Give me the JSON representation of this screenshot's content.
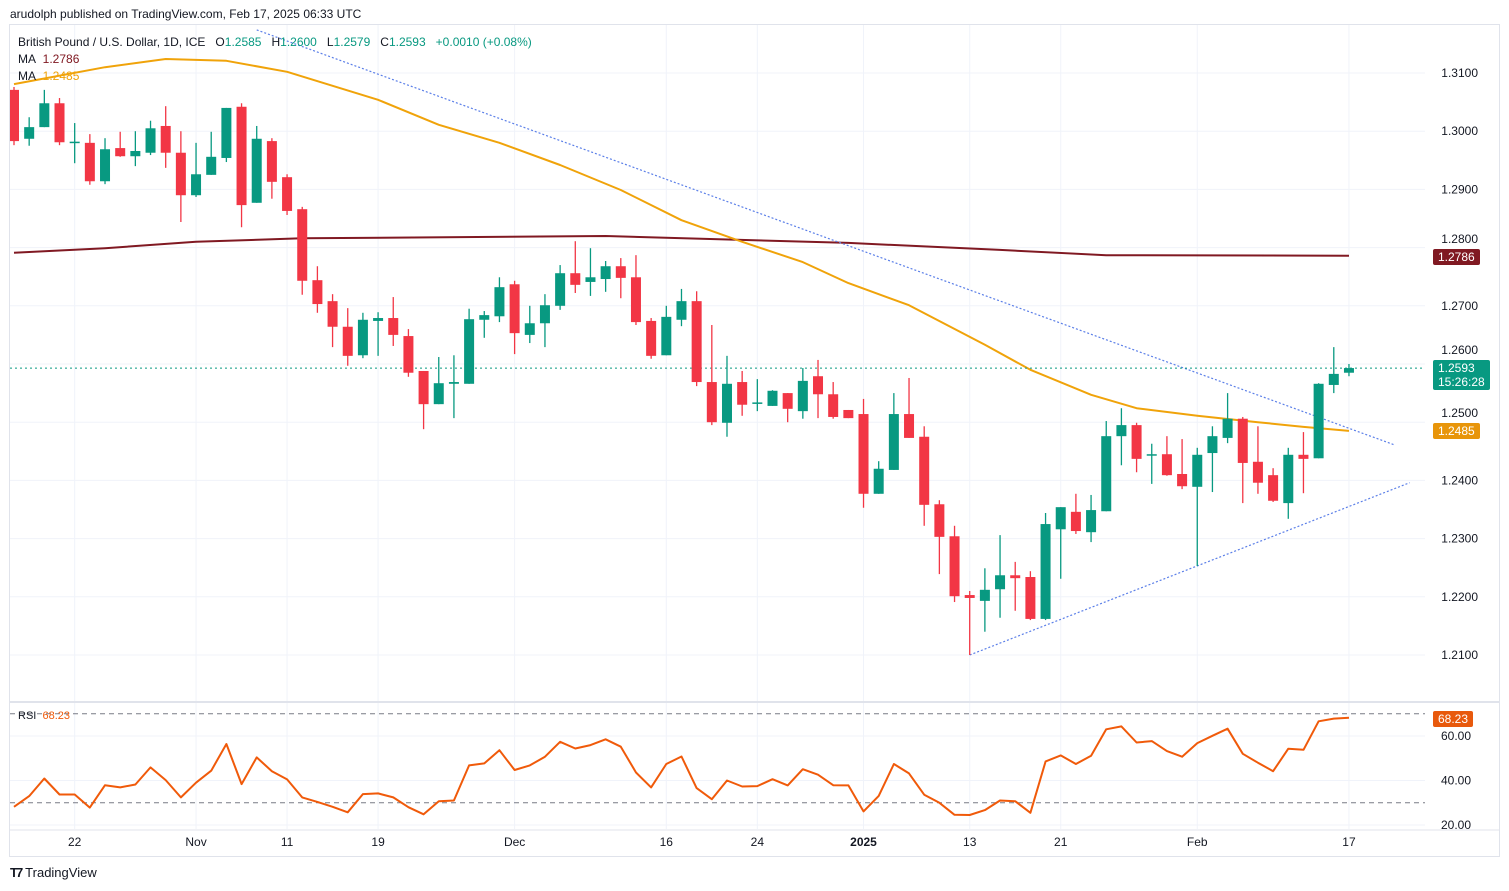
{
  "publish_line": "arudolph published on TradingView.com, Feb 17, 2025 06:33 UTC",
  "legend": {
    "symbol": "British Pound / U.S. Dollar, 1D, ICE",
    "o_label": "O",
    "o": "1.2585",
    "h_label": "H",
    "h": "1.2600",
    "l_label": "L",
    "l": "1.2579",
    "c_label": "C",
    "c": "1.2593",
    "change": "+0.0010 (+0.08%)",
    "ma1_label": "MA",
    "ma1_value": "1.2786",
    "ma2_label": "MA",
    "ma2_value": "1.2485"
  },
  "price_tags": {
    "ma200": "1.2786",
    "last_price": "1.2593",
    "countdown": "15:26:28",
    "ma50": "1.2485",
    "rsi": "68.23"
  },
  "rsi_legend": {
    "label": "RSI",
    "value": "68.23"
  },
  "logo_text": "TradingView",
  "colors": {
    "up": "#089981",
    "down": "#F23645",
    "ma200": "#801922",
    "ma50": "#F0A30A",
    "rsi": "#F05A0A",
    "trendline": "#5B7FE8",
    "grid": "#F0F3FA"
  },
  "chart_data": [
    {
      "type": "candlestick",
      "title": "British Pound / U.S. Dollar, 1D, ICE",
      "ylim": [
        1.2,
        1.313
      ],
      "y_ticks": [
        "1.3100",
        "1.3000",
        "1.2900",
        "1.2800",
        "1.2700",
        "1.2600",
        "1.2500",
        "1.2400",
        "1.2300",
        "1.2200",
        "1.2100"
      ],
      "x_ticks": [
        {
          "index": 4,
          "label": "22"
        },
        {
          "index": 12,
          "label": "Nov"
        },
        {
          "index": 18,
          "label": "11"
        },
        {
          "index": 24,
          "label": "19"
        },
        {
          "index": 33,
          "label": "Dec"
        },
        {
          "index": 43,
          "label": "16"
        },
        {
          "index": 49,
          "label": "24"
        },
        {
          "index": 56,
          "label": "2025"
        },
        {
          "index": 63,
          "label": "13"
        },
        {
          "index": 69,
          "label": "21"
        },
        {
          "index": 78,
          "label": "Feb"
        },
        {
          "index": 88,
          "label": "17"
        }
      ],
      "grid": true,
      "ohlc": [
        [
          1.3071,
          1.3076,
          1.2976,
          1.2983
        ],
        [
          1.2987,
          1.3024,
          1.2975,
          1.3007
        ],
        [
          1.3007,
          1.3071,
          1.3007,
          1.3048
        ],
        [
          1.3048,
          1.3057,
          1.2976,
          1.2981
        ],
        [
          1.2981,
          1.3014,
          1.2945,
          1.2982
        ],
        [
          1.298,
          1.2995,
          1.2908,
          1.2914
        ],
        [
          1.2914,
          1.2988,
          1.2909,
          1.2969
        ],
        [
          1.2971,
          1.2999,
          1.2956,
          1.2957
        ],
        [
          1.2957,
          1.3,
          1.294,
          1.2966
        ],
        [
          1.2963,
          1.3018,
          1.2959,
          1.3005
        ],
        [
          1.3009,
          1.3043,
          1.2937,
          1.2963
        ],
        [
          1.2963,
          1.3,
          1.2844,
          1.289
        ],
        [
          1.289,
          1.298,
          1.2887,
          1.2926
        ],
        [
          1.2925,
          1.2999,
          1.2925,
          1.2956
        ],
        [
          1.2954,
          1.304,
          1.2947,
          1.304
        ],
        [
          1.3042,
          1.3048,
          1.2835,
          1.2873
        ],
        [
          1.2877,
          1.3009,
          1.2877,
          1.2987
        ],
        [
          1.2983,
          1.2988,
          1.2884,
          1.2913
        ],
        [
          1.2921,
          1.2926,
          1.2856,
          1.2863
        ],
        [
          1.2866,
          1.287,
          1.2719,
          1.2743
        ],
        [
          1.2744,
          1.2768,
          1.2688,
          1.2703
        ],
        [
          1.2708,
          1.272,
          1.2629,
          1.2664
        ],
        [
          1.2664,
          1.2696,
          1.2597,
          1.2614
        ],
        [
          1.2615,
          1.2688,
          1.261,
          1.2676
        ],
        [
          1.2674,
          1.2689,
          1.2614,
          1.2679
        ],
        [
          1.2679,
          1.2715,
          1.2631,
          1.265
        ],
        [
          1.2648,
          1.266,
          1.2578,
          1.2585
        ],
        [
          1.2588,
          1.2588,
          1.2488,
          1.2531
        ],
        [
          1.2531,
          1.2612,
          1.2531,
          1.2567
        ],
        [
          1.2566,
          1.2615,
          1.2507,
          1.2569
        ],
        [
          1.2566,
          1.2695,
          1.2566,
          1.2677
        ],
        [
          1.2676,
          1.2691,
          1.2645,
          1.2684
        ],
        [
          1.2682,
          1.2749,
          1.2672,
          1.2732
        ],
        [
          1.2737,
          1.2743,
          1.2617,
          1.2653
        ],
        [
          1.265,
          1.27,
          1.2636,
          1.267
        ],
        [
          1.267,
          1.272,
          1.2629,
          1.2701
        ],
        [
          1.27,
          1.277,
          1.2693,
          1.2756
        ],
        [
          1.2756,
          1.2811,
          1.2722,
          1.2736
        ],
        [
          1.2741,
          1.2799,
          1.2717,
          1.2749
        ],
        [
          1.2746,
          1.2777,
          1.2724,
          1.2768
        ],
        [
          1.2768,
          1.2782,
          1.2713,
          1.2748
        ],
        [
          1.2749,
          1.2787,
          1.2667,
          1.2672
        ],
        [
          1.2674,
          1.2679,
          1.2609,
          1.2614
        ],
        [
          1.2615,
          1.27,
          1.2615,
          1.2681
        ],
        [
          1.2676,
          1.2729,
          1.2665,
          1.2708
        ],
        [
          1.2708,
          1.2725,
          1.2562,
          1.2569
        ],
        [
          1.2569,
          1.2667,
          1.2495,
          1.25
        ],
        [
          1.2499,
          1.2614,
          1.2475,
          1.2566
        ],
        [
          1.2569,
          1.2588,
          1.2511,
          1.253
        ],
        [
          1.2533,
          1.2574,
          1.2519,
          1.2534
        ],
        [
          1.2528,
          1.2555,
          1.2528,
          1.2554
        ],
        [
          1.255,
          1.255,
          1.25,
          1.2523
        ],
        [
          1.2519,
          1.2593,
          1.2506,
          1.2571
        ],
        [
          1.2579,
          1.2607,
          1.2507,
          1.2548
        ],
        [
          1.2548,
          1.2569,
          1.2506,
          1.2509
        ],
        [
          1.2521,
          1.2521,
          1.2507,
          1.2507
        ],
        [
          1.2514,
          1.254,
          1.2353,
          1.2377
        ],
        [
          1.2377,
          1.2433,
          1.2377,
          1.242
        ],
        [
          1.2418,
          1.255,
          1.2418,
          1.2514
        ],
        [
          1.2514,
          1.2576,
          1.2473,
          1.2473
        ],
        [
          1.2475,
          1.2493,
          1.2322,
          1.2358
        ],
        [
          1.2359,
          1.2366,
          1.2239,
          1.2303
        ],
        [
          1.2304,
          1.2322,
          1.2191,
          1.2201
        ],
        [
          1.2203,
          1.221,
          1.21,
          1.2198
        ],
        [
          1.2193,
          1.2249,
          1.214,
          1.2212
        ],
        [
          1.2213,
          1.2306,
          1.2164,
          1.2237
        ],
        [
          1.2237,
          1.226,
          1.2176,
          1.2232
        ],
        [
          1.2234,
          1.2244,
          1.216,
          1.2162
        ],
        [
          1.2162,
          1.2344,
          1.216,
          1.2325
        ],
        [
          1.2316,
          1.2354,
          1.2231,
          1.2354
        ],
        [
          1.2346,
          1.2377,
          1.2308,
          1.2313
        ],
        [
          1.2311,
          1.2375,
          1.2294,
          1.2349
        ],
        [
          1.2347,
          1.2502,
          1.2347,
          1.2476
        ],
        [
          1.2476,
          1.2524,
          1.2426,
          1.2495
        ],
        [
          1.2495,
          1.2499,
          1.2414,
          1.2437
        ],
        [
          1.2444,
          1.2463,
          1.2394,
          1.2445
        ],
        [
          1.2445,
          1.2476,
          1.2408,
          1.2409
        ],
        [
          1.2411,
          1.2471,
          1.2385,
          1.239
        ],
        [
          1.2389,
          1.2456,
          1.2253,
          1.2444
        ],
        [
          1.2447,
          1.2493,
          1.238,
          1.2476
        ],
        [
          1.2473,
          1.255,
          1.2464,
          1.2506
        ],
        [
          1.2506,
          1.2509,
          1.2361,
          1.243
        ],
        [
          1.2432,
          1.2493,
          1.2377,
          1.2396
        ],
        [
          1.2409,
          1.2421,
          1.2363,
          1.2365
        ],
        [
          1.2361,
          1.2456,
          1.2334,
          1.2444
        ],
        [
          1.2444,
          1.2483,
          1.2378,
          1.2437
        ],
        [
          1.2438,
          1.2567,
          1.2438,
          1.2566
        ],
        [
          1.2564,
          1.2629,
          1.255,
          1.2583
        ],
        [
          1.2585,
          1.26,
          1.2579,
          1.2593
        ]
      ],
      "overlays": [
        {
          "name": "MA",
          "value": "1.2786",
          "color": "#801922",
          "points": [
            [
              0,
              1.2791
            ],
            [
              6,
              1.2799
            ],
            [
              12,
              1.281
            ],
            [
              19,
              1.2816
            ],
            [
              39,
              1.282
            ],
            [
              55,
              1.2808
            ],
            [
              65,
              1.2796
            ],
            [
              72,
              1.2787
            ],
            [
              88,
              1.2786
            ]
          ]
        },
        {
          "name": "MA",
          "value": "1.2485",
          "color": "#F0A30A",
          "points": [
            [
              0,
              1.3081
            ],
            [
              6,
              1.311
            ],
            [
              10,
              1.3124
            ],
            [
              14,
              1.3121
            ],
            [
              18,
              1.3102
            ],
            [
              24,
              1.3054
            ],
            [
              28,
              1.3011
            ],
            [
              32,
              1.298
            ],
            [
              36,
              1.2942
            ],
            [
              40,
              1.2899
            ],
            [
              44,
              1.2847
            ],
            [
              48,
              1.281
            ],
            [
              52,
              1.2775
            ],
            [
              55,
              1.2739
            ],
            [
              59,
              1.2701
            ],
            [
              64,
              1.2633
            ],
            [
              67,
              1.259
            ],
            [
              71,
              1.2547
            ],
            [
              74,
              1.2524
            ],
            [
              78,
              1.2511
            ],
            [
              82,
              1.25
            ],
            [
              85,
              1.2492
            ],
            [
              88,
              1.2485
            ]
          ]
        }
      ],
      "trendlines": [
        [
          [
            16,
            1.3174
          ],
          [
            91,
            1.2461
          ]
        ],
        [
          [
            63,
            1.21
          ],
          [
            92,
            1.2396
          ]
        ]
      ],
      "last_price": 1.2593
    },
    {
      "type": "line",
      "title": "RSI",
      "ylim": [
        18,
        75
      ],
      "y_ticks": [
        "60.00",
        "40.00",
        "20.00"
      ],
      "bands": [
        70,
        30
      ],
      "values": [
        28.2,
        33.0,
        40.9,
        33.7,
        33.7,
        27.8,
        37.9,
        36.9,
        38.2,
        45.9,
        40.2,
        32.4,
        39.0,
        44.4,
        56.4,
        38.4,
        50.4,
        44.2,
        40.5,
        32.4,
        30.4,
        28.2,
        25.7,
        33.9,
        34.2,
        32.4,
        28.0,
        24.8,
        30.7,
        31.0,
        46.8,
        47.7,
        53.6,
        44.7,
        46.8,
        50.7,
        57.4,
        54.4,
        55.9,
        58.5,
        55.2,
        43.6,
        36.9,
        47.4,
        50.8,
        36.6,
        31.6,
        40.0,
        37.3,
        37.5,
        40.6,
        37.8,
        45.1,
        42.6,
        37.9,
        37.8,
        26.1,
        33.1,
        47.4,
        43.2,
        33.6,
        30.0,
        24.6,
        24.5,
        26.7,
        31.0,
        30.7,
        25.5,
        48.6,
        51.3,
        47.4,
        51.1,
        63.0,
        64.3,
        57.1,
        57.7,
        53.2,
        50.7,
        56.8,
        60.1,
        63.3,
        52.0,
        48.0,
        44.2,
        54.3,
        53.8,
        66.6,
        67.8,
        68.23
      ]
    }
  ]
}
